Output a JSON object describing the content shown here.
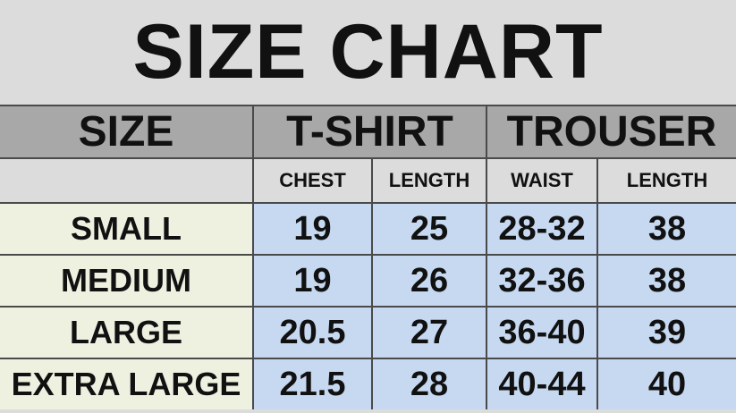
{
  "title": "SIZE CHART",
  "headers": {
    "size": "SIZE",
    "tshirt": "T-SHIRT",
    "trouser": "TROUSER"
  },
  "subheaders": [
    "CHEST",
    "LENGTH",
    "WAIST",
    "LENGTH"
  ],
  "rows": [
    {
      "size": "SMALL",
      "chest": "19",
      "tlength": "25",
      "waist": "28-32",
      "plength": "38"
    },
    {
      "size": "MEDIUM",
      "chest": "19",
      "tlength": "26",
      "waist": "32-36",
      "plength": "38"
    },
    {
      "size": "LARGE",
      "chest": "20.5",
      "tlength": "27",
      "waist": "36-40",
      "plength": "39"
    },
    {
      "size": "EXTRA LARGE",
      "chest": "21.5",
      "tlength": "28",
      "waist": "40-44",
      "plength": "40"
    }
  ],
  "colors": {
    "header": "#a8a8a8",
    "subheader": "#dcdcdc",
    "size_cell": "#eef1e0",
    "data_cell": "#c6d9f1"
  }
}
